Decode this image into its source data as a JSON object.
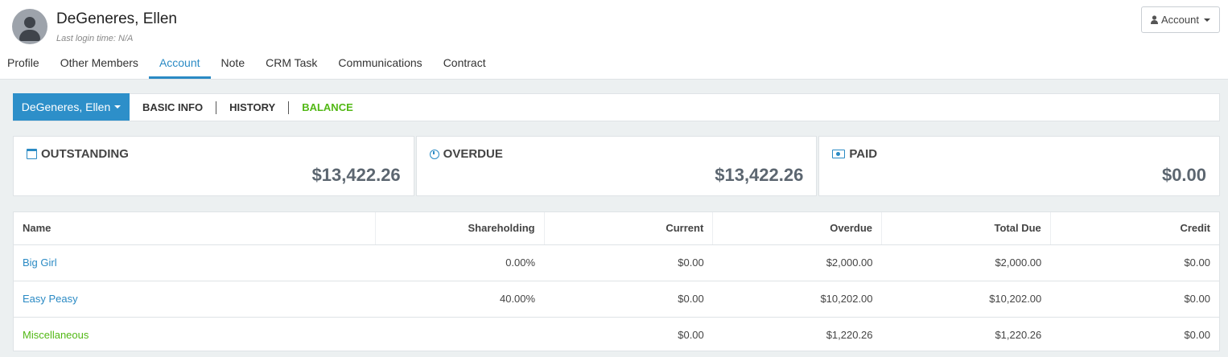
{
  "user": {
    "name": "DeGeneres, Ellen",
    "last_login": "Last login time: N/A"
  },
  "account_menu": {
    "label": "Account",
    "icon": "user-icon"
  },
  "nav": {
    "tabs": [
      "Profile",
      "Other Members",
      "Account",
      "Note",
      "CRM Task",
      "Communications",
      "Contract"
    ],
    "active": "Account"
  },
  "subnav": {
    "member_selector": "DeGeneres, Ellen",
    "tabs": [
      "BASIC INFO",
      "HISTORY",
      "BALANCE"
    ],
    "active": "BALANCE"
  },
  "summary": {
    "outstanding": {
      "label": "OUTSTANDING",
      "value": "$13,422.26",
      "icon": "calendar-icon"
    },
    "overdue": {
      "label": "OVERDUE",
      "value": "$13,422.26",
      "icon": "clock-icon"
    },
    "paid": {
      "label": "PAID",
      "value": "$0.00",
      "icon": "money-icon"
    }
  },
  "table": {
    "headers": [
      "Name",
      "Shareholding",
      "Current",
      "Overdue",
      "Total Due",
      "Credit"
    ],
    "rows": [
      {
        "name": "Big Girl",
        "shareholding": "0.00%",
        "current": "$0.00",
        "overdue": "$2,000.00",
        "total_due": "$2,000.00",
        "credit": "$0.00"
      },
      {
        "name": "Easy Peasy",
        "shareholding": "40.00%",
        "current": "$0.00",
        "overdue": "$10,202.00",
        "total_due": "$10,202.00",
        "credit": "$0.00"
      },
      {
        "name": "Miscellaneous",
        "shareholding": "",
        "current": "$0.00",
        "overdue": "$1,220.26",
        "total_due": "$1,220.26",
        "credit": "$0.00"
      }
    ]
  },
  "colors": {
    "accent_blue": "#2a8ac4",
    "active_green": "#52b815",
    "button_blue": "#2d8fc9"
  }
}
